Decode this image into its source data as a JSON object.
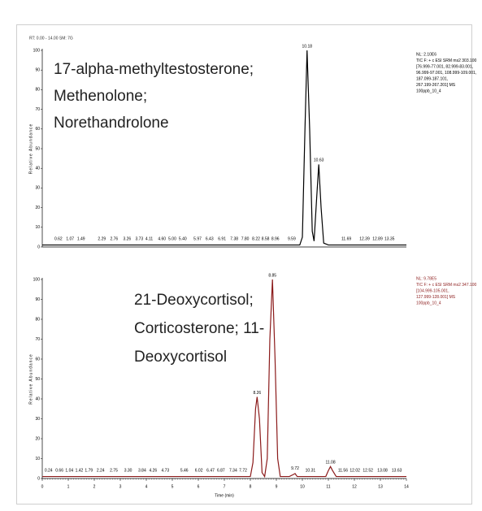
{
  "chart_data": [
    {
      "type": "line",
      "subtitle": "RT: 0.00 - 14.00  SM: 7G",
      "ylabel": "Relative Abundance",
      "color": "#000000",
      "xlim": [
        0,
        14
      ],
      "ylim": [
        0,
        100
      ],
      "yticks": [
        0,
        10,
        20,
        30,
        40,
        50,
        60,
        70,
        80,
        90,
        100
      ],
      "x": [
        0,
        9.9,
        10.0,
        10.1,
        10.18,
        10.28,
        10.38,
        10.45,
        10.55,
        10.63,
        10.72,
        10.82,
        11,
        14
      ],
      "values": [
        1,
        1,
        5,
        60,
        100,
        60,
        8,
        3,
        25,
        42,
        20,
        2,
        1,
        1
      ],
      "info": [
        "NL: 2.10E6",
        "TIC F: + c ESI SRM ms2 303.100",
        "[76.999-77.001, 82.999-83.001,",
        "96.999-97.001, 108.999-109.001,",
        "187.099-187.101,",
        "267.199-267.201] MS",
        "100ppb_10_4"
      ],
      "compound_labels": [
        "17-alpha-methyltestosterone;",
        "Methenolone;",
        "Norethandrolone"
      ],
      "peak_labels": [
        {
          "value": 10.18,
          "label": "10.18",
          "y": 100
        },
        {
          "value": 10.63,
          "label": "10.63",
          "y": 42
        },
        {
          "value": 0.62,
          "label": "0.62",
          "y": 2
        },
        {
          "value": 1.07,
          "label": "1.07",
          "y": 2
        },
        {
          "value": 1.49,
          "label": "1.49",
          "y": 2
        },
        {
          "value": 2.29,
          "label": "2.29",
          "y": 2
        },
        {
          "value": 2.76,
          "label": "2.76",
          "y": 2
        },
        {
          "value": 3.26,
          "label": "3.26",
          "y": 2
        },
        {
          "value": 3.73,
          "label": "3.73",
          "y": 2
        },
        {
          "value": 4.11,
          "label": "4.11",
          "y": 2
        },
        {
          "value": 4.6,
          "label": "4.60",
          "y": 2
        },
        {
          "value": 5,
          "label": "5.00",
          "y": 2
        },
        {
          "value": 5.4,
          "label": "5.40",
          "y": 2
        },
        {
          "value": 5.97,
          "label": "5.97",
          "y": 2
        },
        {
          "value": 6.43,
          "label": "6.43",
          "y": 2
        },
        {
          "value": 6.91,
          "label": "6.91",
          "y": 2
        },
        {
          "value": 7.38,
          "label": "7.38",
          "y": 2
        },
        {
          "value": 7.8,
          "label": "7.80",
          "y": 2
        },
        {
          "value": 8.22,
          "label": "8.22",
          "y": 2
        },
        {
          "value": 8.58,
          "label": "8.58",
          "y": 2
        },
        {
          "value": 8.96,
          "label": "8.96",
          "y": 2
        },
        {
          "value": 9.59,
          "label": "9.59",
          "y": 2
        },
        {
          "value": 11.69,
          "label": "11.69",
          "y": 2
        },
        {
          "value": 12.39,
          "label": "12.39",
          "y": 2
        },
        {
          "value": 12.89,
          "label": "12.89",
          "y": 2
        },
        {
          "value": 13.35,
          "label": "13.35",
          "y": 2
        }
      ]
    },
    {
      "type": "line",
      "ylabel": "Relative Abundance",
      "xlabel": "Time (min)",
      "color": "#8b1a1a",
      "xlim": [
        0,
        14
      ],
      "ylim": [
        0,
        100
      ],
      "yticks": [
        0,
        10,
        20,
        30,
        40,
        50,
        60,
        70,
        80,
        90,
        100
      ],
      "xticks": [
        0,
        1,
        2,
        3,
        4,
        5,
        6,
        7,
        8,
        9,
        10,
        11,
        12,
        13,
        14
      ],
      "x": [
        0,
        8.0,
        8.1,
        8.2,
        8.26,
        8.35,
        8.45,
        8.55,
        8.65,
        8.75,
        8.85,
        8.95,
        9.05,
        9.15,
        9.5,
        9.65,
        9.72,
        9.8,
        10.9,
        11.0,
        11.08,
        11.16,
        11.3,
        14
      ],
      "values": [
        1,
        1,
        8,
        35,
        41,
        30,
        3,
        1,
        10,
        70,
        100,
        60,
        10,
        1,
        1,
        2,
        2.5,
        1,
        1,
        4,
        6,
        4,
        1,
        1
      ],
      "info": [
        "NL: 9.78E5",
        "TIC F: + c ESI SRM ms2 347.100",
        "[104.999-105.001,",
        "127.999-128.001] MS",
        "100ppb_10_4"
      ],
      "compound_labels": [
        "21-Deoxycortisol;",
        "Corticosterone; 11-",
        "Deoxycortisol"
      ],
      "peak_labels": [
        {
          "value": 8.26,
          "label": "8.26",
          "y": 41
        },
        {
          "value": 8.85,
          "label": "8.85",
          "y": 100
        },
        {
          "value": 9.72,
          "label": "9.72",
          "y": 3
        },
        {
          "value": 10.31,
          "label": "10.31",
          "y": 2
        },
        {
          "value": 11.08,
          "label": "11.08",
          "y": 6
        },
        {
          "value": 0.24,
          "label": "0.24",
          "y": 2
        },
        {
          "value": 0.66,
          "label": "0.66",
          "y": 2
        },
        {
          "value": 1.04,
          "label": "1.04",
          "y": 2
        },
        {
          "value": 1.42,
          "label": "1.42",
          "y": 2
        },
        {
          "value": 1.79,
          "label": "1.79",
          "y": 2
        },
        {
          "value": 2.24,
          "label": "2.24",
          "y": 2
        },
        {
          "value": 2.75,
          "label": "2.75",
          "y": 2
        },
        {
          "value": 3.3,
          "label": "3.30",
          "y": 2
        },
        {
          "value": 3.84,
          "label": "3.84",
          "y": 2
        },
        {
          "value": 4.26,
          "label": "4.26",
          "y": 2
        },
        {
          "value": 4.73,
          "label": "4.73",
          "y": 2
        },
        {
          "value": 5.46,
          "label": "5.46",
          "y": 2
        },
        {
          "value": 6.02,
          "label": "6.02",
          "y": 2
        },
        {
          "value": 6.47,
          "label": "6.47",
          "y": 2
        },
        {
          "value": 6.87,
          "label": "6.87",
          "y": 2
        },
        {
          "value": 7.34,
          "label": "7.34",
          "y": 2
        },
        {
          "value": 7.72,
          "label": "7.72",
          "y": 2
        },
        {
          "value": 11.56,
          "label": "11.56",
          "y": 2
        },
        {
          "value": 12.02,
          "label": "12.02",
          "y": 2
        },
        {
          "value": 12.52,
          "label": "12.52",
          "y": 2
        },
        {
          "value": 13.08,
          "label": "13.08",
          "y": 2
        },
        {
          "value": 13.63,
          "label": "13.63",
          "y": 2
        }
      ]
    }
  ]
}
